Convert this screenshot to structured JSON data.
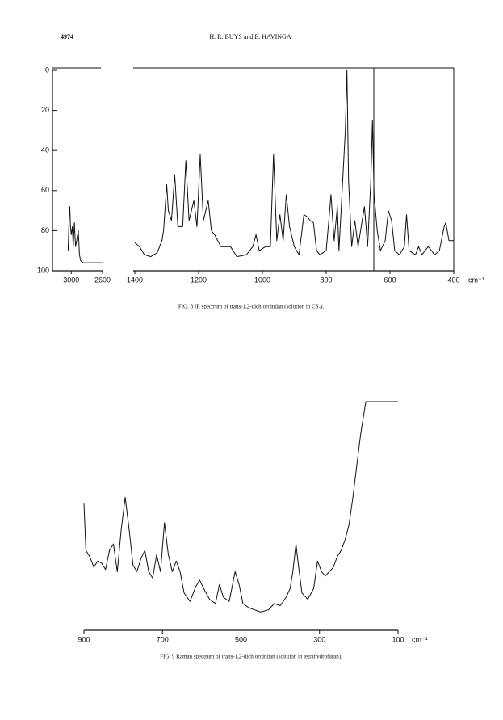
{
  "header": {
    "page_number": "4974",
    "authors": "H. R. BUYS and E. HAVINGA"
  },
  "chart_data": [
    {
      "type": "line",
      "color": "#111111",
      "x": [
        3040,
        3025,
        3018,
        3010,
        3000,
        2985,
        2975,
        2960,
        2945,
        2930,
        2910,
        2895,
        2880,
        2850,
        2800,
        2700,
        2600
      ],
      "values": [
        90,
        72,
        68,
        78,
        82,
        78,
        88,
        76,
        88,
        85,
        80,
        92,
        95,
        96,
        96,
        96,
        96
      ],
      "xlim": [
        3240,
        2600
      ],
      "xticks": [
        3000,
        2600
      ],
      "ylim": [
        100,
        0
      ],
      "yticks": [
        0,
        20,
        40,
        60,
        80,
        100
      ]
    },
    {
      "type": "line",
      "color": "#111111",
      "x": [
        1400,
        1385,
        1370,
        1350,
        1330,
        1315,
        1310,
        1300,
        1295,
        1285,
        1275,
        1265,
        1250,
        1240,
        1230,
        1215,
        1205,
        1195,
        1185,
        1170,
        1160,
        1150,
        1130,
        1100,
        1080,
        1050,
        1030,
        1020,
        1010,
        990,
        975,
        965,
        955,
        945,
        935,
        925,
        915,
        900,
        885,
        870,
        860,
        850,
        840,
        830,
        820,
        800,
        790,
        785,
        775,
        765,
        760,
        750,
        740,
        735,
        730,
        720,
        710,
        700,
        690,
        680,
        670,
        660,
        655,
        650,
        640,
        630,
        615,
        605,
        595,
        585,
        570,
        555,
        548,
        540,
        520,
        510,
        500,
        480,
        470,
        460,
        445,
        430,
        425,
        415,
        400
      ],
      "values": [
        86,
        88,
        92,
        93,
        91,
        85,
        80,
        57,
        70,
        75,
        52,
        78,
        78,
        45,
        75,
        65,
        78,
        42,
        75,
        65,
        80,
        82,
        88,
        88,
        93,
        92,
        88,
        82,
        90,
        88,
        88,
        42,
        85,
        72,
        85,
        62,
        78,
        88,
        92,
        72,
        73,
        75,
        76,
        90,
        92,
        90,
        72,
        62,
        85,
        68,
        90,
        60,
        30,
        0,
        55,
        88,
        75,
        88,
        78,
        68,
        88,
        55,
        25,
        62,
        80,
        90,
        85,
        70,
        75,
        90,
        92,
        88,
        72,
        90,
        92,
        88,
        92,
        88,
        90,
        92,
        90,
        78,
        76,
        85,
        85
      ],
      "xlim": [
        1400,
        400
      ],
      "xticks": [
        1400,
        1200,
        1000,
        800,
        600,
        400
      ],
      "ylim": [
        100,
        0
      ],
      "x_unit": "cm⁻¹",
      "caption": "FIG. 8 IR spectrum of trans-1,2-dichloroindan (solution in CS₂)."
    },
    {
      "type": "line",
      "color": "#111111",
      "x": [
        900,
        895,
        885,
        875,
        865,
        855,
        845,
        835,
        825,
        815,
        805,
        795,
        785,
        775,
        765,
        755,
        745,
        735,
        725,
        715,
        705,
        695,
        685,
        675,
        665,
        655,
        645,
        630,
        615,
        605,
        595,
        580,
        565,
        555,
        545,
        530,
        515,
        505,
        495,
        480,
        465,
        450,
        430,
        415,
        400,
        385,
        375,
        368,
        360,
        355,
        345,
        330,
        315,
        305,
        295,
        285,
        275,
        265,
        255,
        245,
        235,
        225,
        215,
        205,
        195,
        182,
        140,
        100
      ],
      "values": [
        52,
        30,
        27,
        22,
        25,
        24,
        21,
        30,
        33,
        20,
        40,
        55,
        40,
        23,
        20,
        26,
        30,
        20,
        17,
        28,
        20,
        43,
        28,
        20,
        25,
        20,
        10,
        6,
        13,
        16,
        12,
        7,
        5,
        14,
        8,
        6,
        20,
        14,
        5,
        3,
        2,
        1,
        2,
        5,
        4,
        8,
        12,
        20,
        33,
        25,
        10,
        7,
        12,
        25,
        20,
        18,
        20,
        22,
        27,
        30,
        35,
        42,
        55,
        70,
        85,
        100,
        100,
        100
      ],
      "xlim": [
        900,
        100
      ],
      "xticks": [
        900,
        700,
        500,
        300,
        100
      ],
      "ylim": [
        0,
        100
      ],
      "x_unit": "cm⁻¹",
      "caption": "FIG. 9 Raman spectrum of trans-1,2-dichloroindan (solution in tetrahydrofuran)."
    }
  ]
}
